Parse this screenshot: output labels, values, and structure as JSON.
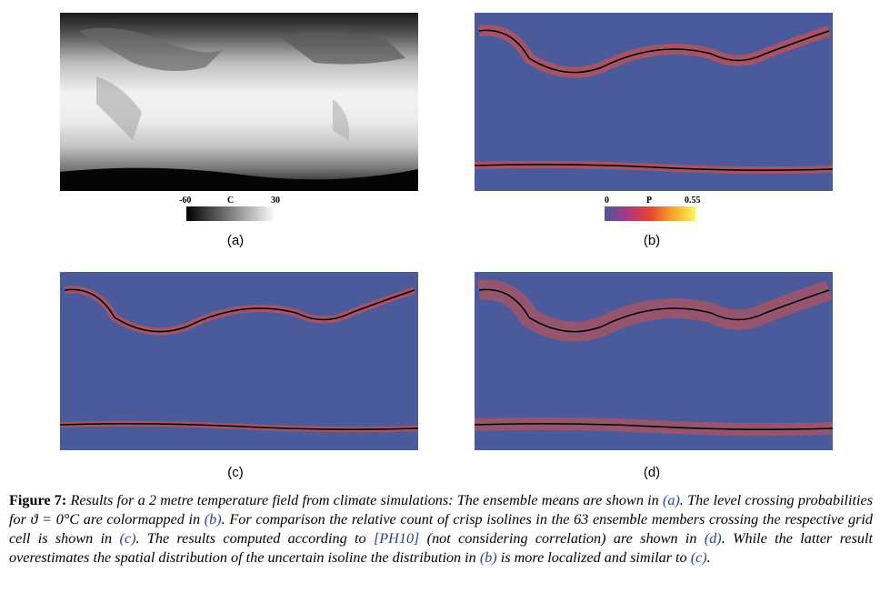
{
  "panels": [
    {
      "id": "a",
      "label": "(a)"
    },
    {
      "id": "b",
      "label": "(b)"
    },
    {
      "id": "c",
      "label": "(c)"
    },
    {
      "id": "d",
      "label": "(d)"
    }
  ],
  "colorbar_a": {
    "min": "-60",
    "unit": "C",
    "max": "30",
    "colors": [
      "#000000",
      "#ffffff"
    ]
  },
  "colorbar_b": {
    "min": "0",
    "unit": "P",
    "max": "0.55",
    "colors": [
      "#4a5a9e",
      "#a8387f",
      "#e8442f",
      "#f7a42a",
      "#fbf55a"
    ]
  },
  "map_colors": {
    "background": "#4b5a9b",
    "isoline": "#000000"
  },
  "caption": {
    "figure_label": "Figure 7:",
    "text_1": " Results for a 2 metre temperature field from climate simulations: The ensemble means are shown in ",
    "ref_a": "(a)",
    "text_2": ". The level crossing probabilities for ϑ = 0°C are colormapped in ",
    "ref_b": "(b)",
    "text_3": ". For comparison the relative count of crisp isolines in the 63 ensemble members crossing the respective grid cell is shown in ",
    "ref_c": "(c)",
    "text_4": ". The results computed according to ",
    "ref_ph10": "[PH10]",
    "text_5": " (not considering correlation) are shown in ",
    "ref_d": "(d)",
    "text_6": ". While the latter result overestimates the spatial distribution of the uncertain isoline the distribution in ",
    "ref_b2": "(b)",
    "text_7": " is more localized and similar to ",
    "ref_c2": "(c)",
    "text_8": "."
  }
}
